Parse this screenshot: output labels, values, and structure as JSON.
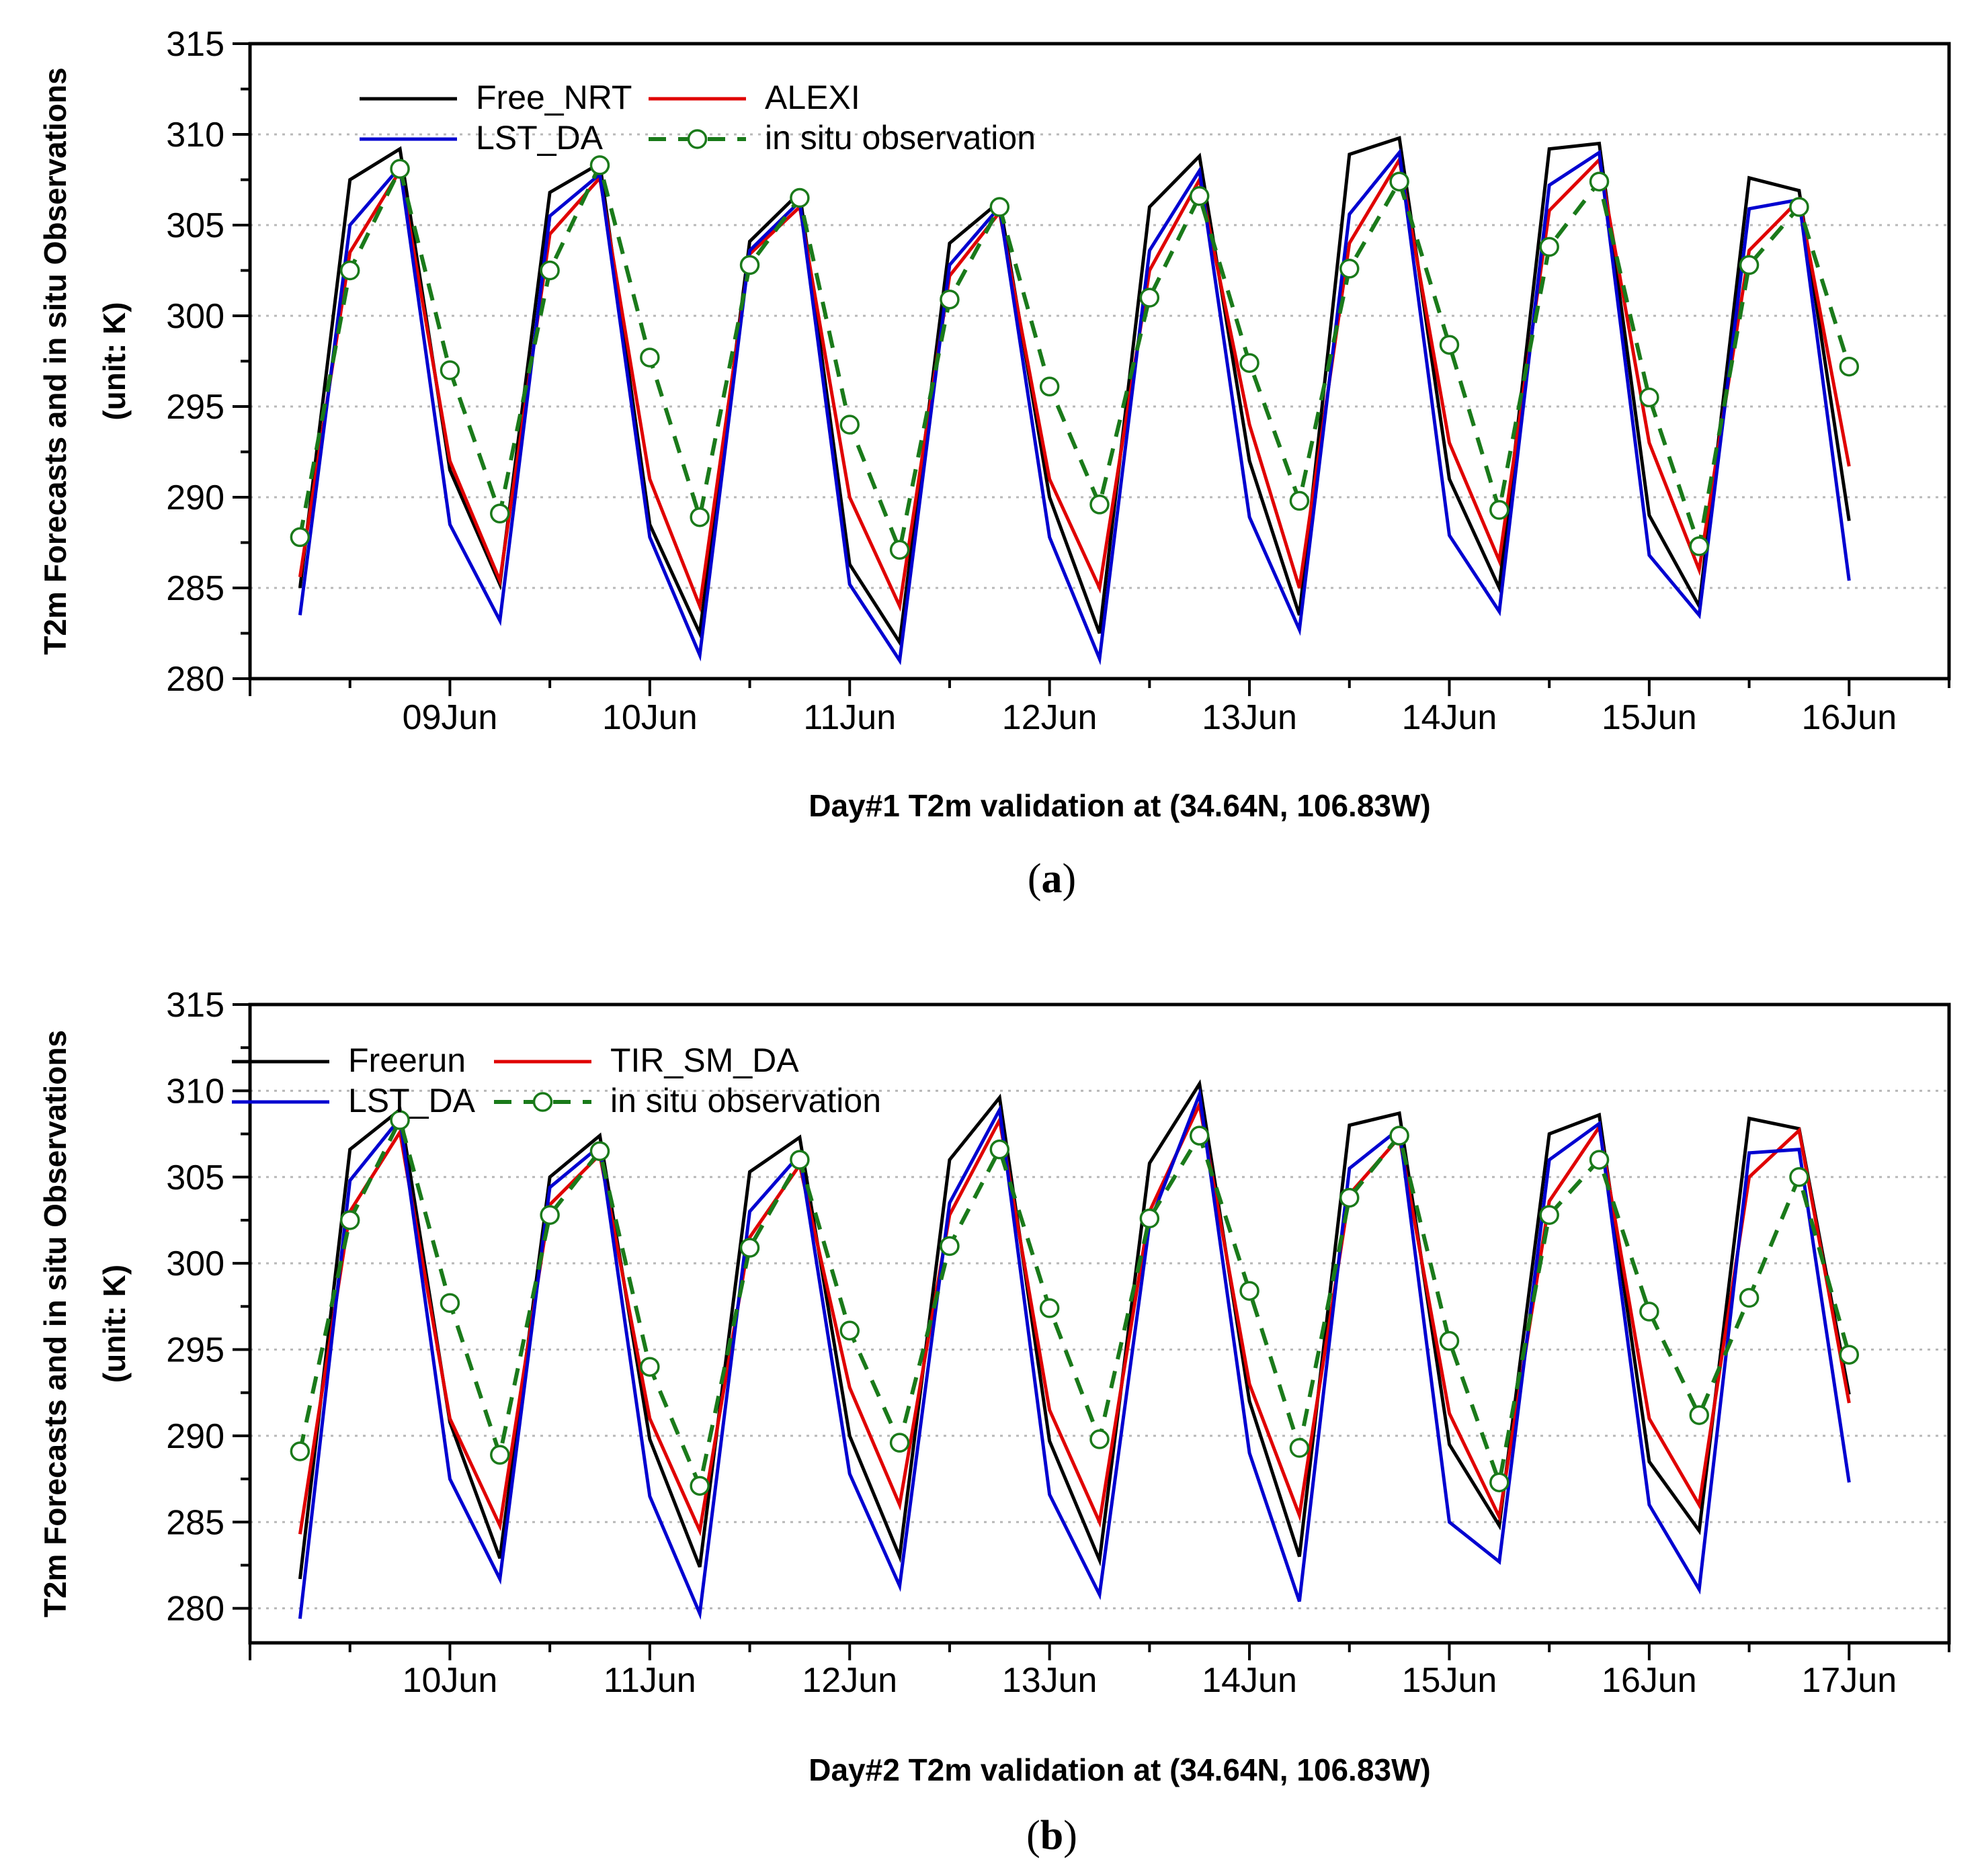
{
  "colors": {
    "free": "#000000",
    "alexi": "#e00000",
    "lst": "#0000d0",
    "obs": "#1a7a1a",
    "grid": "#b8b8b8",
    "marker_fill": "#ffffff"
  },
  "chart_data": [
    {
      "type": "line",
      "panel": "a",
      "caption_open": "(",
      "caption_letter": "a",
      "caption_close": ")",
      "title": "",
      "xlabel": "Day#1 T2m validation at (34.64N, 106.83W)",
      "ylabel_line1": "T2m Forecasts and in situ Observations",
      "ylabel_line2": "(unit: K)",
      "ylim": [
        280,
        315
      ],
      "yticks": [
        "280",
        "285",
        "290",
        "295",
        "300",
        "305",
        "310",
        "315"
      ],
      "xlim": [
        8.0,
        16.5
      ],
      "xticks": [
        {
          "x": 9,
          "label": "09Jun"
        },
        {
          "x": 10,
          "label": "10Jun"
        },
        {
          "x": 11,
          "label": "11Jun"
        },
        {
          "x": 12,
          "label": "12Jun"
        },
        {
          "x": 13,
          "label": "13Jun"
        },
        {
          "x": 14,
          "label": "14Jun"
        },
        {
          "x": 15,
          "label": "15Jun"
        },
        {
          "x": 16,
          "label": "16Jun"
        }
      ],
      "grid": "horizontal dotted",
      "legend": [
        {
          "label": "Free_NRT",
          "style": "free"
        },
        {
          "label": "ALEXI",
          "style": "alexi"
        },
        {
          "label": "LST_DA",
          "style": "lst"
        },
        {
          "label": "in situ observation",
          "style": "obs"
        }
      ],
      "x": [
        8.25,
        8.5,
        8.75,
        9.0,
        9.25,
        9.5,
        9.75,
        10.0,
        10.25,
        10.5,
        10.75,
        11.0,
        11.25,
        11.5,
        11.75,
        12.0,
        12.25,
        12.5,
        12.75,
        13.0,
        13.25,
        13.5,
        13.75,
        14.0,
        14.25,
        14.5,
        14.75,
        15.0,
        15.25,
        15.5,
        15.75,
        16.0
      ],
      "series": [
        {
          "name": "Free_NRT",
          "style": "free",
          "values": [
            285.0,
            307.5,
            309.2,
            291.5,
            285.2,
            306.8,
            308.4,
            288.5,
            282.5,
            304.1,
            306.8,
            286.3,
            282.0,
            304.0,
            306.3,
            290.0,
            282.5,
            306.0,
            308.8,
            292.0,
            283.5,
            308.9,
            309.8,
            291.0,
            285.0,
            309.2,
            309.5,
            289.0,
            284.0,
            307.6,
            306.9,
            288.7
          ]
        },
        {
          "name": "ALEXI",
          "style": "alexi",
          "values": [
            285.6,
            303.5,
            308.0,
            292.0,
            285.4,
            304.5,
            307.6,
            291.0,
            284.0,
            303.4,
            306.0,
            290.0,
            284.0,
            302.2,
            305.7,
            291.0,
            285.0,
            302.5,
            307.5,
            294.0,
            285.0,
            304.0,
            308.6,
            293.0,
            286.5,
            305.8,
            308.6,
            293.0,
            286.0,
            303.6,
            306.4,
            291.7
          ]
        },
        {
          "name": "LST_DA",
          "style": "lst",
          "values": [
            283.5,
            305.0,
            308.2,
            288.5,
            283.2,
            305.5,
            307.8,
            287.8,
            281.3,
            303.6,
            306.3,
            285.2,
            281.0,
            302.8,
            306.0,
            287.8,
            281.1,
            303.6,
            308.0,
            288.9,
            282.7,
            305.6,
            309.0,
            287.9,
            283.7,
            307.2,
            309.0,
            286.8,
            283.5,
            305.9,
            306.4,
            285.4
          ]
        },
        {
          "name": "in situ observation",
          "style": "obs",
          "values": [
            287.8,
            302.5,
            308.1,
            297.0,
            289.1,
            302.5,
            308.3,
            297.7,
            288.9,
            302.8,
            306.5,
            294.0,
            287.1,
            300.9,
            306.0,
            296.1,
            289.6,
            301.0,
            306.6,
            297.4,
            289.8,
            302.6,
            307.4,
            298.4,
            289.3,
            303.8,
            307.4,
            295.5,
            287.3,
            302.8,
            306.0,
            297.2
          ]
        }
      ]
    },
    {
      "type": "line",
      "panel": "b",
      "caption_open": "(",
      "caption_letter": "b",
      "caption_close": ")",
      "title": "",
      "xlabel": "Day#2 T2m validation at (34.64N, 106.83W)",
      "ylabel_line1": "T2m Forecasts and in situ Observations",
      "ylabel_line2": "(unit: K)",
      "ylim": [
        278,
        315
      ],
      "yticks": [
        "280",
        "285",
        "290",
        "295",
        "300",
        "305",
        "310",
        "315"
      ],
      "xlim": [
        9.0,
        17.5
      ],
      "xticks": [
        {
          "x": 10,
          "label": "10Jun"
        },
        {
          "x": 11,
          "label": "11Jun"
        },
        {
          "x": 12,
          "label": "12Jun"
        },
        {
          "x": 13,
          "label": "13Jun"
        },
        {
          "x": 14,
          "label": "14Jun"
        },
        {
          "x": 15,
          "label": "15Jun"
        },
        {
          "x": 16,
          "label": "16Jun"
        },
        {
          "x": 17,
          "label": "17Jun"
        }
      ],
      "grid": "horizontal dotted",
      "legend": [
        {
          "label": "Freerun",
          "style": "free"
        },
        {
          "label": "TIR_SM_DA",
          "style": "alexi"
        },
        {
          "label": "LST_DA",
          "style": "lst"
        },
        {
          "label": "in situ observation",
          "style": "obs"
        }
      ],
      "x": [
        9.25,
        9.5,
        9.75,
        10.0,
        10.25,
        10.5,
        10.75,
        11.0,
        11.25,
        11.5,
        11.75,
        12.0,
        12.25,
        12.5,
        12.75,
        13.0,
        13.25,
        13.5,
        13.75,
        14.0,
        14.25,
        14.5,
        14.75,
        15.0,
        15.25,
        15.5,
        15.75,
        16.0,
        16.25,
        16.5,
        16.75,
        17.0
      ],
      "series": [
        {
          "name": "Freerun",
          "style": "free",
          "values": [
            281.7,
            306.6,
            308.9,
            290.8,
            282.9,
            305.0,
            307.4,
            289.8,
            282.4,
            305.3,
            307.3,
            290.0,
            283.0,
            306.0,
            309.6,
            289.7,
            282.8,
            305.8,
            310.4,
            292.0,
            283.0,
            308.0,
            308.7,
            289.5,
            284.8,
            307.5,
            308.6,
            288.5,
            284.5,
            308.4,
            307.8,
            292.4
          ]
        },
        {
          "name": "TIR_SM_DA",
          "style": "alexi",
          "values": [
            284.3,
            303.0,
            307.6,
            291.0,
            284.8,
            303.4,
            306.3,
            291.0,
            284.5,
            301.5,
            305.7,
            292.8,
            286.0,
            302.8,
            308.3,
            291.5,
            285.0,
            303.0,
            309.2,
            293.0,
            285.4,
            304.0,
            307.3,
            291.3,
            285.3,
            303.6,
            307.9,
            291.0,
            286.0,
            305.0,
            307.7,
            291.9
          ]
        },
        {
          "name": "LST_DA",
          "style": "lst",
          "values": [
            279.4,
            304.8,
            308.4,
            287.5,
            281.7,
            304.4,
            306.8,
            286.5,
            279.7,
            303.0,
            306.3,
            287.8,
            281.3,
            303.5,
            308.9,
            286.6,
            280.8,
            302.3,
            309.8,
            289.0,
            280.4,
            305.5,
            307.8,
            285.0,
            282.7,
            306.0,
            308.1,
            286.0,
            281.1,
            306.4,
            306.6,
            287.3
          ]
        },
        {
          "name": "in situ observation",
          "style": "obs",
          "values": [
            289.1,
            302.5,
            308.3,
            297.7,
            288.9,
            302.8,
            306.5,
            294.0,
            287.1,
            300.9,
            306.0,
            296.1,
            289.6,
            301.0,
            306.6,
            297.4,
            289.8,
            302.6,
            307.4,
            298.4,
            289.3,
            303.8,
            307.4,
            295.5,
            287.3,
            302.8,
            306.0,
            297.2,
            291.2,
            298.0,
            305.0,
            294.7
          ]
        }
      ]
    }
  ]
}
